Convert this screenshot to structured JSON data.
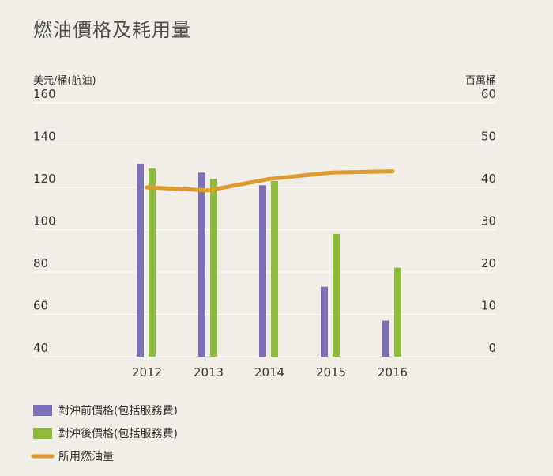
{
  "chart_data": {
    "type": "bar",
    "title": "燃油價格及耗用量",
    "categories": [
      "2012",
      "2013",
      "2014",
      "2015",
      "2016"
    ],
    "left_axis": {
      "label": "美元/桶(航油)",
      "ticks": [
        40,
        60,
        80,
        100,
        120,
        140,
        160
      ],
      "range": [
        40,
        160
      ]
    },
    "right_axis": {
      "label": "百萬桶",
      "ticks": [
        0,
        10,
        20,
        30,
        40,
        50,
        60
      ],
      "range": [
        0,
        60
      ]
    },
    "series": [
      {
        "name": "對沖前價格(包括服務費)",
        "type": "bar",
        "axis": "left",
        "color": "#7b6fb5",
        "values": [
          131,
          127,
          121,
          73,
          57
        ]
      },
      {
        "name": "對沖後價格(包括服務費)",
        "type": "bar",
        "axis": "left",
        "color": "#8fbb3d",
        "values": [
          129,
          124,
          123,
          98,
          82
        ]
      },
      {
        "name": "所用燃油量",
        "type": "line",
        "axis": "right",
        "color": "#dd9a2e",
        "values": [
          40,
          39.3,
          42,
          43.5,
          43.8
        ]
      }
    ],
    "grid": true,
    "legend_position": "bottom-left"
  }
}
